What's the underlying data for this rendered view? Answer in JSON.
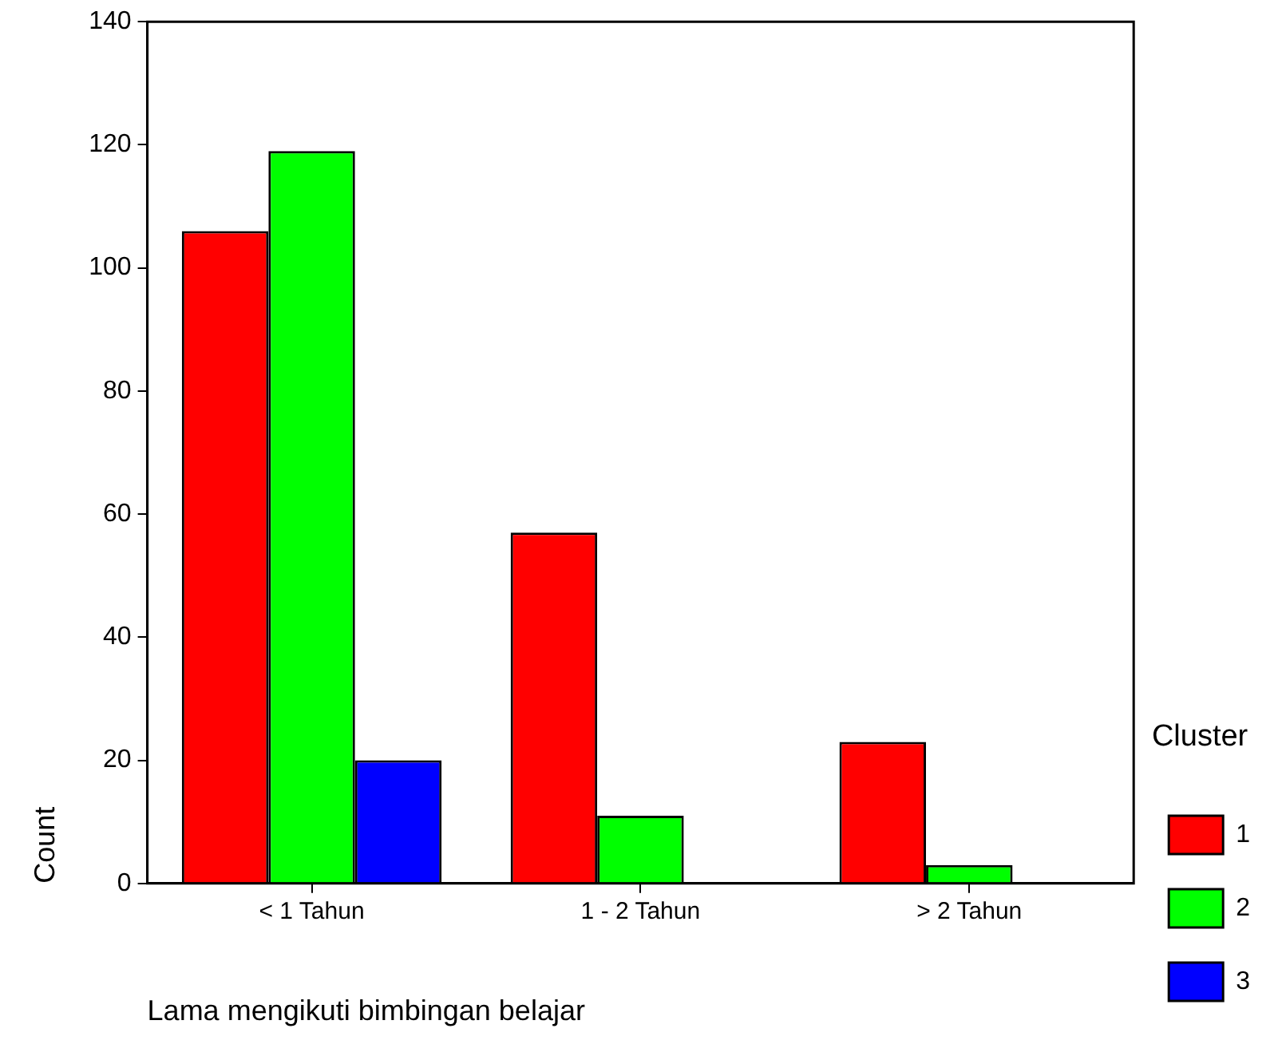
{
  "chart_data": {
    "type": "bar",
    "xlabel": "Lama mengikuti bimbingan belajar",
    "ylabel": "Count",
    "legend_title": "Cluster",
    "categories": [
      "< 1 Tahun",
      "1 - 2 Tahun",
      "> 2 Tahun"
    ],
    "series": [
      {
        "name": "1",
        "color": "#ff0000",
        "values": [
          106,
          57,
          23
        ]
      },
      {
        "name": "2",
        "color": "#00ff00",
        "values": [
          119,
          11,
          3
        ]
      },
      {
        "name": "3",
        "color": "#0000ff",
        "values": [
          20,
          null,
          null
        ]
      }
    ],
    "ylim": [
      0,
      140
    ],
    "yticks": [
      0,
      20,
      40,
      60,
      80,
      100,
      120,
      140
    ],
    "grid": false,
    "legend": "right"
  }
}
